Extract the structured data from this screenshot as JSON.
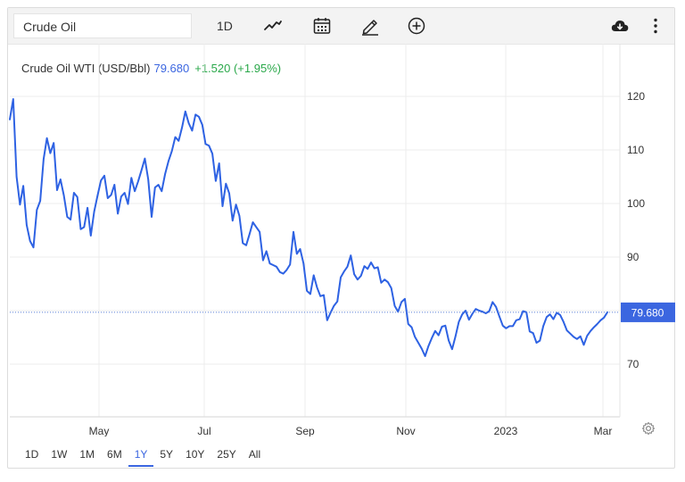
{
  "toolbar": {
    "symbol": "Crude Oil",
    "interval": "1D",
    "icons": [
      "line-style-icon",
      "calendar-icon",
      "draw-pencil-icon",
      "add-indicator-icon",
      "download-cloud-icon",
      "more-vertical-icon"
    ]
  },
  "header": {
    "name": "Crude Oil WTI (USD/Bbl)",
    "price": "79.680",
    "change": "+1.520 (+1.95%)"
  },
  "price_label": "79.680",
  "ranges": [
    {
      "label": "1D",
      "active": false
    },
    {
      "label": "1W",
      "active": false
    },
    {
      "label": "1M",
      "active": false
    },
    {
      "label": "6M",
      "active": false
    },
    {
      "label": "1Y",
      "active": true
    },
    {
      "label": "5Y",
      "active": false
    },
    {
      "label": "10Y",
      "active": false
    },
    {
      "label": "25Y",
      "active": false
    },
    {
      "label": "All",
      "active": false
    }
  ],
  "colors": {
    "line": "#2e62e3",
    "price_tag": "#3b66e0",
    "change_positive": "#2aa84a",
    "grid": "#ececec"
  },
  "chart_data": {
    "type": "line",
    "title": "",
    "xlabel": "",
    "ylabel": "",
    "y_ticks": [
      70,
      80,
      90,
      100,
      110,
      120
    ],
    "y_tick_labels": [
      "70",
      "",
      "90",
      "100",
      "110",
      "120"
    ],
    "ylim": [
      60,
      126
    ],
    "x_ticks": [
      "May",
      "Jul",
      "Sep",
      "Nov",
      "2023",
      "Mar"
    ],
    "x_range": [
      "Mar 2022",
      "Mar 2023"
    ],
    "grid": true,
    "last_value": 79.68,
    "series": [
      {
        "values": [
          115.7,
          119.5,
          105,
          99.8,
          103.3,
          96,
          93,
          91.8,
          98.8,
          100.5,
          108.3,
          112.2,
          109.4,
          111.3,
          102.5,
          104.5,
          101.5,
          97.5,
          97,
          102,
          101.2,
          95.2,
          95.6,
          99.2,
          94,
          98.5,
          101.5,
          104.3,
          105.2,
          101,
          101.6,
          103.5,
          98.1,
          101.3,
          102,
          99.9,
          104.8,
          102.3,
          104.1,
          106.2,
          108.4,
          104.5,
          97.5,
          103,
          103.5,
          102.3,
          105.5,
          107.9,
          109.8,
          112.4,
          111.7,
          114.2,
          117.2,
          115,
          113.6,
          116.6,
          116.2,
          114.7,
          111.1,
          110.8,
          109.3,
          104.2,
          107.5,
          99.5,
          103.7,
          101.9,
          96.8,
          99.8,
          97.7,
          92.6,
          92.2,
          94.3,
          96.5,
          95.6,
          94.7,
          89.4,
          91.1,
          88.8,
          88.5,
          88.2,
          87.2,
          86.9,
          87.6,
          88.6,
          94.7,
          90.6,
          91.5,
          88.8,
          83.7,
          83.1,
          86.6,
          84.3,
          82.7,
          82.9,
          78.2,
          79.6,
          80.9,
          81.7,
          86.2,
          87.3,
          88.2,
          90.3,
          86.8,
          85.8,
          86.5,
          88.3,
          87.8,
          89,
          87.9,
          88.1,
          85.2,
          85.8,
          85.3,
          84.2,
          80.9,
          79.8,
          81.6,
          82.2,
          77.5,
          76.9,
          75.1,
          74,
          72.9,
          71.5,
          73.4,
          74.9,
          76.2,
          75.4,
          77,
          77.2,
          74.4,
          72.8,
          75.2,
          77.9,
          79.3,
          80,
          78.3,
          79.4,
          80.3,
          80,
          79.8,
          79.5,
          79.9,
          81.6,
          80.7,
          78.9,
          77.2,
          76.7,
          77.1,
          77.1,
          78.2,
          78.4,
          79.9,
          79.7,
          76.1,
          75.8,
          74,
          74.4,
          77.1,
          78.8,
          79.3,
          78.4,
          79.6,
          79.2,
          77.9,
          76.3,
          75.7,
          75.1,
          74.7,
          75.2,
          73.6,
          75.3,
          76.2,
          76.9,
          77.5,
          78.2,
          78.7,
          79.7
        ]
      }
    ]
  }
}
